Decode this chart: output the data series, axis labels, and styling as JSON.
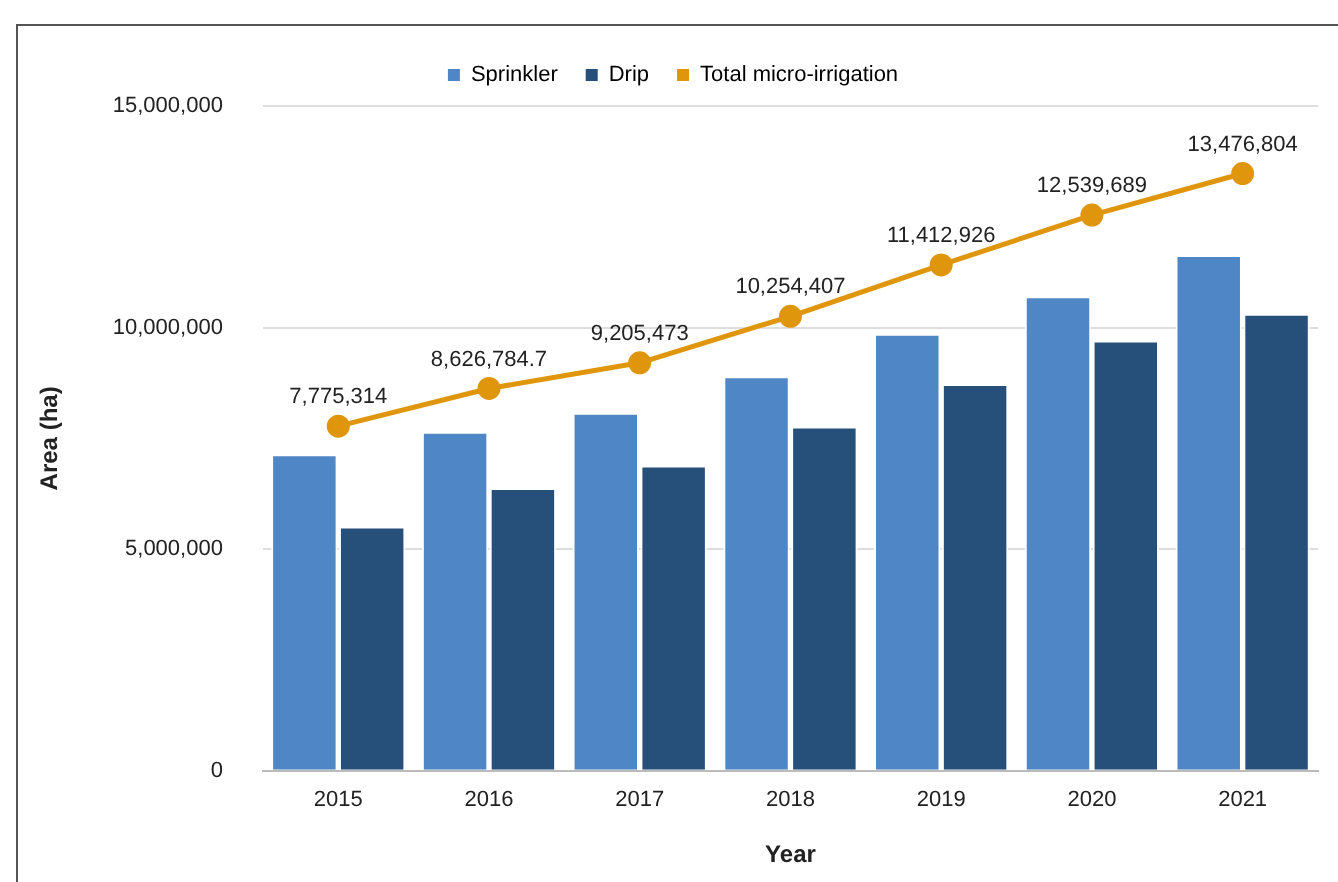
{
  "chart_data": {
    "type": "bar",
    "xlabel": "Year",
    "ylabel": "Area (ha)",
    "categories": [
      "2015",
      "2016",
      "2017",
      "2018",
      "2019",
      "2020",
      "2021"
    ],
    "series": [
      {
        "name": "Sprinkler",
        "color": "#4f86c6",
        "values": [
          7140000,
          7650000,
          8080000,
          8900000,
          9860000,
          10710000,
          11640000
        ]
      },
      {
        "name": "Drip",
        "color": "#265079",
        "values": [
          5510000,
          6380000,
          6890000,
          7770000,
          8730000,
          9710000,
          10310000
        ]
      },
      {
        "name": "Total micro-irrigation",
        "type": "line",
        "color": "#e0960c",
        "marker": "circle",
        "values": [
          7775314,
          8626784.7,
          9205473,
          10254407,
          11412926,
          12539689,
          13476804
        ],
        "value_labels": [
          "7,775,314",
          "8,626,784.7",
          "9,205,473",
          "10,254,407",
          "11,412,926",
          "12,539,689",
          "13,476,804"
        ]
      }
    ],
    "ylim": [
      0,
      15000000
    ],
    "yticks": [
      0,
      {
        "value": 5000000,
        "label": "5,000,000"
      },
      {
        "value": 10000000,
        "label": "10,000,000"
      },
      {
        "value": 15000000,
        "label": "15,000,000"
      }
    ],
    "grid": "y",
    "legend": "top"
  }
}
